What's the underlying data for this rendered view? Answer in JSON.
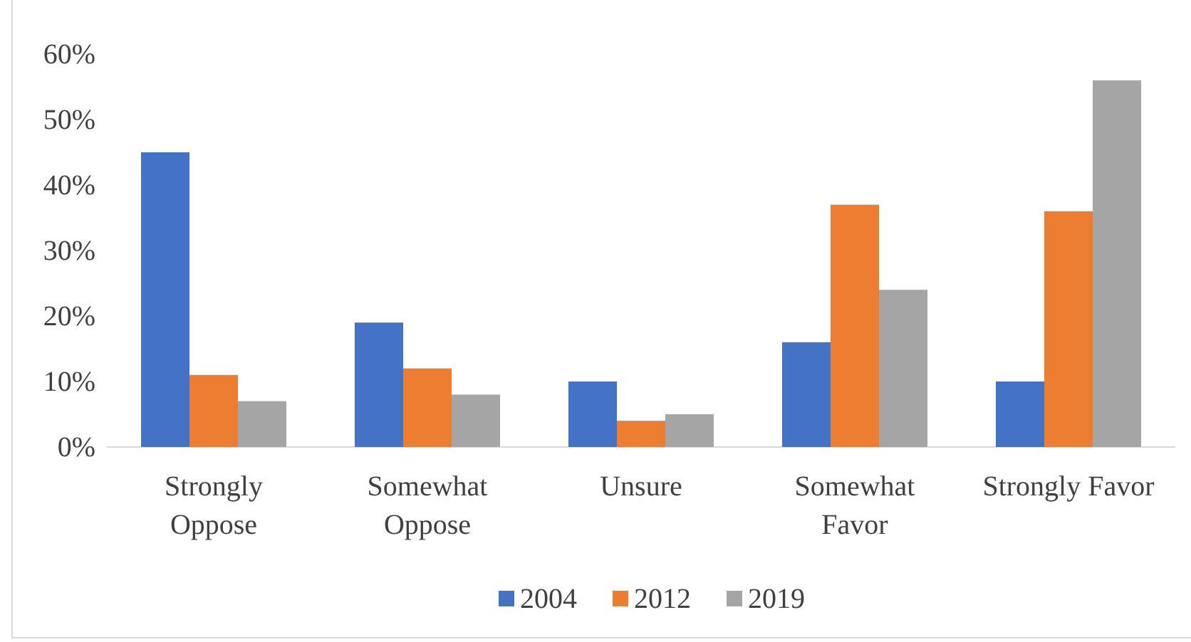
{
  "chart_data": {
    "type": "bar",
    "categories": [
      "Strongly\nOppose",
      "Somewhat\nOppose",
      "Unsure",
      "Somewhat\nFavor",
      "Strongly Favor"
    ],
    "series": [
      {
        "name": "2004",
        "color": "#4472c4",
        "values": [
          45,
          19,
          10,
          16,
          10
        ]
      },
      {
        "name": "2012",
        "color": "#ed7d31",
        "values": [
          11,
          12,
          4,
          37,
          36
        ]
      },
      {
        "name": "2019",
        "color": "#a5a5a5",
        "values": [
          7,
          8,
          5,
          24,
          56
        ]
      }
    ],
    "ylim": [
      0,
      60
    ],
    "yticks": [
      {
        "value": 0,
        "label": "0%"
      },
      {
        "value": 10,
        "label": "10%"
      },
      {
        "value": 20,
        "label": "20%"
      },
      {
        "value": 30,
        "label": "30%"
      },
      {
        "value": 40,
        "label": "40%"
      },
      {
        "value": 50,
        "label": "50%"
      },
      {
        "value": 60,
        "label": "60%"
      }
    ],
    "grid": false,
    "legend": "bottom"
  }
}
